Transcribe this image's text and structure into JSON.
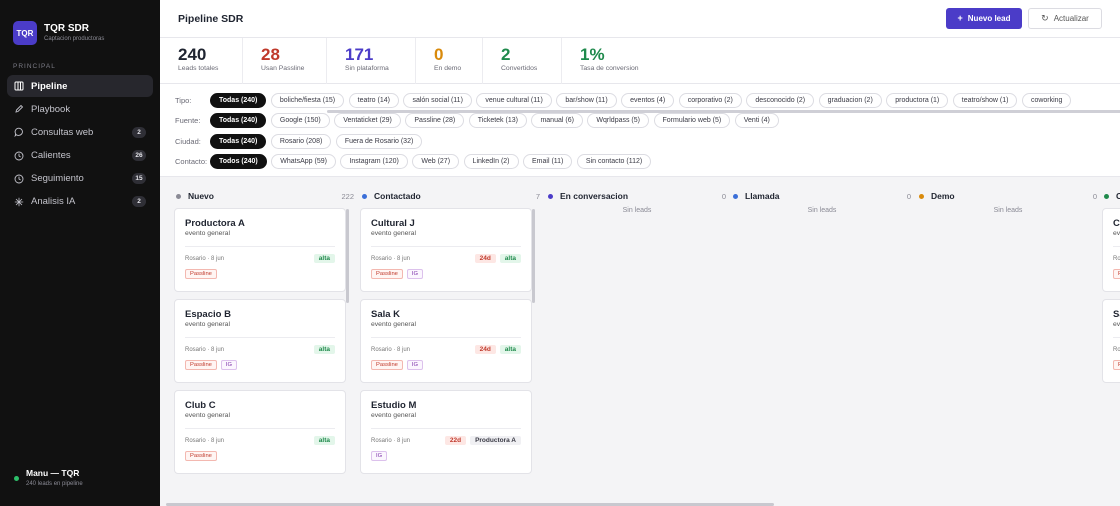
{
  "brand": {
    "logo": "TQR",
    "title": "TQR SDR",
    "subtitle": "Captacion productoras"
  },
  "sidebar": {
    "section": "PRINCIPAL",
    "items": [
      {
        "label": "Pipeline",
        "icon": "kanban-icon",
        "badge": ""
      },
      {
        "label": "Playbook",
        "icon": "pen-icon",
        "badge": ""
      },
      {
        "label": "Consultas web",
        "icon": "chat-icon",
        "badge": "2"
      },
      {
        "label": "Calientes",
        "icon": "clock-icon",
        "badge": "26"
      },
      {
        "label": "Seguimiento",
        "icon": "clock-icon",
        "badge": "15"
      },
      {
        "label": "Analisis IA",
        "icon": "sparkle-icon",
        "badge": "2"
      }
    ]
  },
  "user": {
    "name": "Manu — TQR",
    "sub": "240 leads en pipeline",
    "status_color": "#2dbf6a"
  },
  "header": {
    "title": "Pipeline SDR",
    "new_lead": "Nuevo lead",
    "refresh": "Actualizar"
  },
  "stats": [
    {
      "value": "240",
      "label": "Leads totales",
      "color": "#1f2430"
    },
    {
      "value": "28",
      "label": "Usan Passline",
      "color": "#c0392b"
    },
    {
      "value": "171",
      "label": "Sin plataforma",
      "color": "#4b3cc8"
    },
    {
      "value": "0",
      "label": "En demo",
      "color": "#d98a0b"
    },
    {
      "value": "2",
      "label": "Convertidos",
      "color": "#1f8a4c"
    },
    {
      "value": "1%",
      "label": "Tasa de conversion",
      "color": "#1f8a4c"
    }
  ],
  "filters": {
    "tipo": {
      "label": "Tipo:",
      "chips": [
        "Todas (240)",
        "boliche/fiesta (15)",
        "teatro (14)",
        "salón social (11)",
        "venue cultural (11)",
        "bar/show (11)",
        "eventos (4)",
        "corporativo (2)",
        "desconocido (2)",
        "graduacion (2)",
        "productora (1)",
        "teatro/show (1)",
        "coworking"
      ]
    },
    "fuente": {
      "label": "Fuente:",
      "chips": [
        "Todas (240)",
        "Google (150)",
        "Ventaticket (29)",
        "Passline (28)",
        "Ticketek (13)",
        "manual (6)",
        "Wqrldpass (5)",
        "Formulario web (5)",
        "Venti (4)"
      ]
    },
    "ciudad": {
      "label": "Ciudad:",
      "chips": [
        "Todas (240)",
        "Rosario (208)",
        "Fuera de Rosario (32)"
      ]
    },
    "contacto": {
      "label": "Contacto:",
      "chips": [
        "Todos (240)",
        "WhatsApp (59)",
        "Instagram (120)",
        "Web (27)",
        "LinkedIn (2)",
        "Email (11)",
        "Sin contacto (112)"
      ]
    }
  },
  "columns": [
    {
      "title": "Nuevo",
      "count": "222",
      "dot": "#8a8a95",
      "empty": "",
      "cards": [
        {
          "title": "Productora A",
          "sub": "evento general",
          "loc": "Rosario · 8 jun",
          "age": "",
          "prio": "alta",
          "owner": "",
          "tags": [
            "Passline"
          ]
        },
        {
          "title": "Espacio B",
          "sub": "evento general",
          "loc": "Rosario · 8 jun",
          "age": "",
          "prio": "alta",
          "owner": "",
          "tags": [
            "Passline",
            "IG"
          ]
        },
        {
          "title": "Club C",
          "sub": "evento general",
          "loc": "Rosario · 8 jun",
          "age": "",
          "prio": "alta",
          "owner": "",
          "tags": [
            "Passline"
          ]
        }
      ]
    },
    {
      "title": "Contactado",
      "count": "7",
      "dot": "#3b6fd8",
      "empty": "",
      "cards": [
        {
          "title": "Cultural J",
          "sub": "evento general",
          "loc": "Rosario · 8 jun",
          "age": "24d",
          "prio": "alta",
          "owner": "",
          "tags": [
            "Passline",
            "IG"
          ]
        },
        {
          "title": "Sala K",
          "sub": "evento general",
          "loc": "Rosario · 8 jun",
          "age": "24d",
          "prio": "alta",
          "owner": "",
          "tags": [
            "Passline",
            "IG"
          ]
        },
        {
          "title": "Estudio M",
          "sub": "evento general",
          "loc": "Rosario · 8 jun",
          "age": "22d",
          "prio": "",
          "owner": "Productora A",
          "tags": [
            "IG"
          ]
        }
      ]
    },
    {
      "title": "En conversacion",
      "count": "0",
      "dot": "#4b3cc8",
      "empty": "Sin leads",
      "cards": []
    },
    {
      "title": "Llamada",
      "count": "0",
      "dot": "#3b6fd8",
      "empty": "Sin leads",
      "cards": []
    },
    {
      "title": "Demo",
      "count": "0",
      "dot": "#d98a0b",
      "empty": "Sin leads",
      "cards": []
    },
    {
      "title": "C",
      "count": "",
      "dot": "#1f8a4c",
      "empty": "",
      "cards": [
        {
          "title": "C",
          "sub": "ev",
          "loc": "Ro",
          "age": "",
          "prio": "",
          "owner": "",
          "tags": [
            "P"
          ]
        },
        {
          "title": "Sa",
          "sub": "ev",
          "loc": "Ro",
          "age": "",
          "prio": "",
          "owner": "",
          "tags": [
            "P"
          ]
        }
      ]
    }
  ]
}
